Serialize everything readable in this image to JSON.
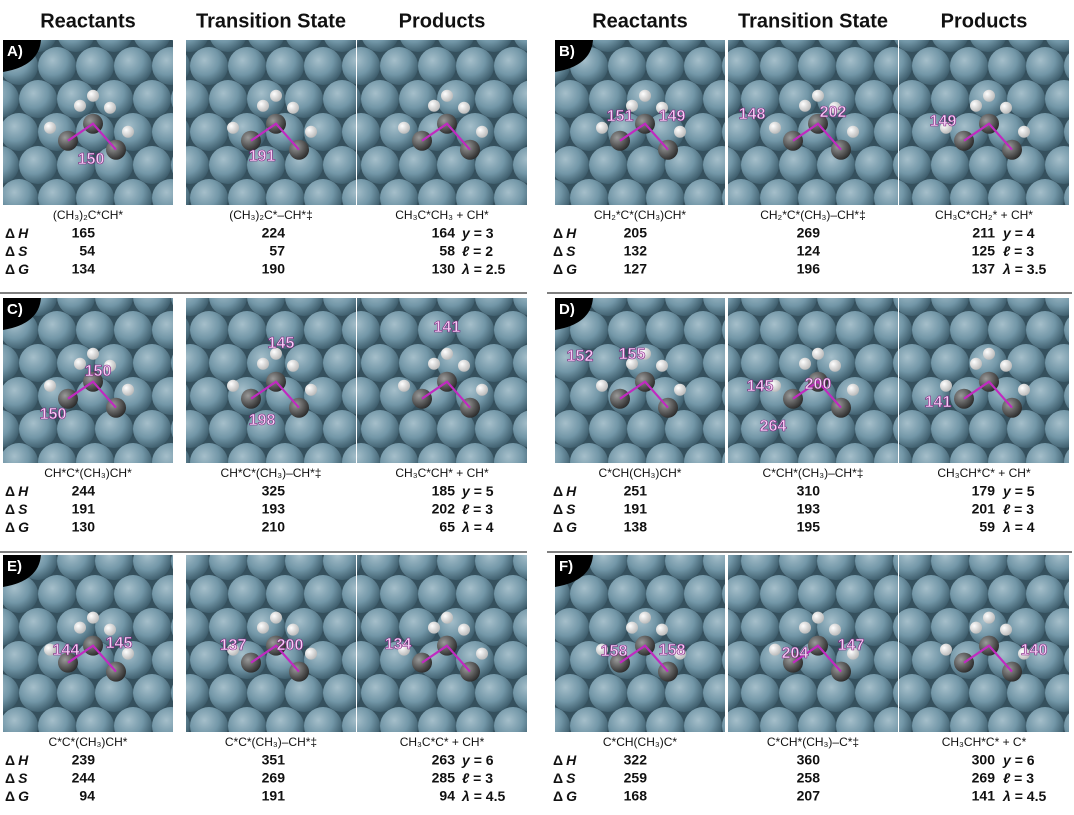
{
  "headers": [
    "Reactants",
    "Transition State",
    "Products"
  ],
  "thermo_labels": [
    "ΔH",
    "ΔS",
    "ΔG"
  ],
  "panels": [
    {
      "label": "A)",
      "bonds": [
        [
          150
        ],
        [
          191
        ],
        []
      ],
      "species": [
        "(CH₃)₂C*CH*",
        "(CH₃)₂C*–CH*‡",
        "CH₃C*CH₃ + CH*"
      ],
      "rows": [
        [
          165,
          224,
          164
        ],
        [
          54,
          57,
          58
        ],
        [
          134,
          190,
          130
        ]
      ],
      "params": [
        "y = 3",
        "ℓ = 2",
        "λ = 2.5"
      ]
    },
    {
      "label": "B)",
      "bonds": [
        [
          151,
          149
        ],
        [
          148,
          202
        ],
        [
          149
        ]
      ],
      "species": [
        "CH₂*C*(CH₃)CH*",
        "CH₂*C*(CH₃)–CH*‡",
        "CH₃C*CH₂* + CH*"
      ],
      "rows": [
        [
          205,
          269,
          211
        ],
        [
          132,
          124,
          125
        ],
        [
          127,
          196,
          137
        ]
      ],
      "params": [
        "y = 4",
        "ℓ = 3",
        "λ = 3.5"
      ]
    },
    {
      "label": "C)",
      "bonds": [
        [
          150,
          150
        ],
        [
          145,
          198
        ],
        [
          141
        ]
      ],
      "species": [
        "CH*C*(CH₃)CH*",
        "CH*C*(CH₃)–CH*‡",
        "CH₃C*CH* + CH*"
      ],
      "rows": [
        [
          244,
          325,
          185
        ],
        [
          191,
          193,
          202
        ],
        [
          130,
          210,
          65
        ]
      ],
      "params": [
        "y = 5",
        "ℓ = 3",
        "λ = 4"
      ]
    },
    {
      "label": "D)",
      "bonds": [
        [
          152,
          155
        ],
        [
          145,
          200,
          264
        ],
        [
          141
        ]
      ],
      "species": [
        "C*CH(CH₃)CH*",
        "C*CH*(CH₃)–CH*‡",
        "CH₃CH*C* + CH*"
      ],
      "rows": [
        [
          251,
          310,
          179
        ],
        [
          191,
          193,
          201
        ],
        [
          138,
          195,
          59
        ]
      ],
      "params": [
        "y = 5",
        "ℓ = 3",
        "λ = 4"
      ]
    },
    {
      "label": "E)",
      "bonds": [
        [
          144,
          145
        ],
        [
          137,
          200
        ],
        [
          134
        ]
      ],
      "species": [
        "C*C*(CH₃)CH*",
        "C*C*(CH₃)–CH*‡",
        "CH₃C*C* + CH*"
      ],
      "rows": [
        [
          239,
          351,
          263
        ],
        [
          244,
          269,
          285
        ],
        [
          94,
          191,
          94
        ]
      ],
      "params": [
        "y = 6",
        "ℓ = 3",
        "λ = 4.5"
      ]
    },
    {
      "label": "F)",
      "bonds": [
        [
          158,
          158
        ],
        [
          204,
          147
        ],
        [
          140
        ]
      ],
      "species": [
        "C*CH(CH₃)C*",
        "C*CH*(CH₃)–C*‡",
        "CH₃CH*C* + C*"
      ],
      "rows": [
        [
          322,
          360,
          300
        ],
        [
          259,
          258,
          269
        ],
        [
          168,
          207,
          141
        ]
      ],
      "params": [
        "y = 6",
        "ℓ = 3",
        "λ = 4.5"
      ]
    }
  ]
}
